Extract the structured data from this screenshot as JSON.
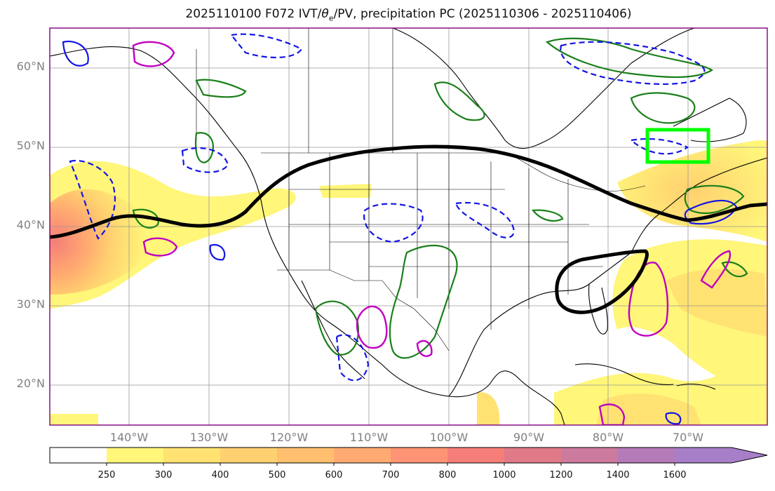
{
  "title": {
    "prefix": "2025110100 F072 IVT/",
    "theta": "θ",
    "sub": "e",
    "suffix": "/PV, precipitation PC (2025110306 - 2025110406)"
  },
  "map": {
    "projection": "PlateCarree",
    "extent_lon": [
      -150,
      -60
    ],
    "extent_lat": [
      15,
      65
    ],
    "lat_labels": [
      "60°N",
      "50°N",
      "40°N",
      "30°N",
      "20°N"
    ],
    "lon_labels": [
      "140°W",
      "130°W",
      "120°W",
      "110°W",
      "100°W",
      "90°W",
      "80°W",
      "70°W"
    ],
    "highlight_box": {
      "lon": [
        -75,
        -67
      ],
      "lat": [
        48,
        52
      ],
      "color": "#00ff00"
    },
    "colors": {
      "coast": "#000000",
      "thick_contour": "#000000",
      "green_contour": "#1a7f1a",
      "blue_dashed": "#1414e6",
      "magenta_contour": "#c000c0",
      "grid": "#999999"
    }
  },
  "colorbar": {
    "levels": [
      "250",
      "300",
      "400",
      "500",
      "600",
      "700",
      "800",
      "1000",
      "1200",
      "1400",
      "1600"
    ],
    "colors": [
      "#ffffff",
      "#fff67a",
      "#ffe272",
      "#ffd070",
      "#ffbf6e",
      "#ffaa70",
      "#ff9474",
      "#f57f78",
      "#e07a88",
      "#cc7a9e",
      "#b57ab8",
      "#a77fc8"
    ],
    "extend": "max"
  }
}
